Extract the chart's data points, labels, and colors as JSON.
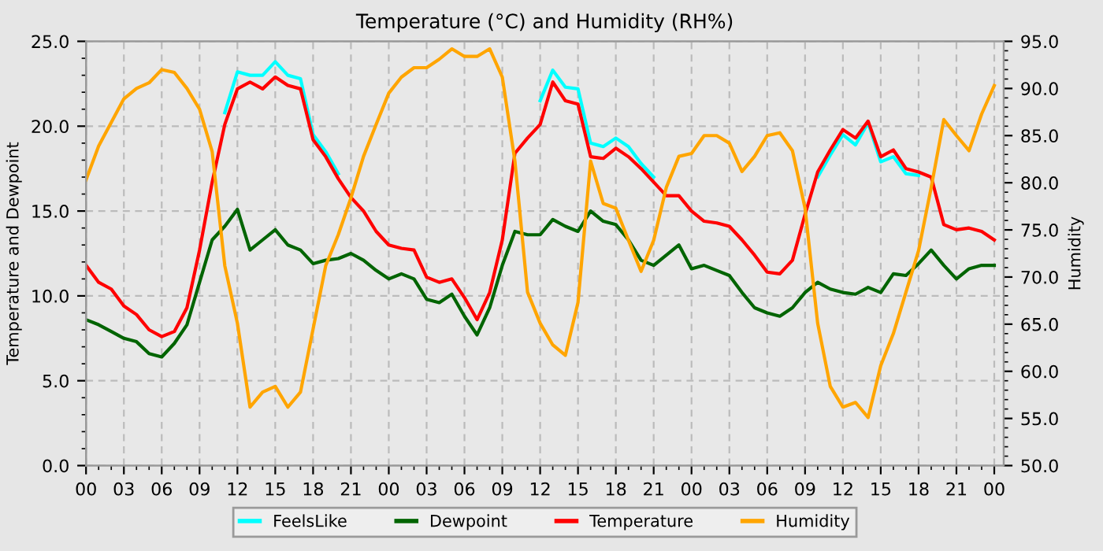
{
  "chart_data": {
    "type": "line",
    "title": "Temperature (°C) and Humidity (RH%)",
    "ylabel": "Temperature and Dewpoint",
    "y2label": "Humidity",
    "x": [
      0,
      1,
      2,
      3,
      4,
      5,
      6,
      7,
      8,
      9,
      10,
      11,
      12,
      13,
      14,
      15,
      16,
      17,
      18,
      19,
      20,
      21,
      22,
      23,
      24,
      25,
      26,
      27,
      28,
      29,
      30,
      31,
      32,
      33,
      34,
      35,
      36,
      37,
      38,
      39,
      40,
      41,
      42,
      43,
      44,
      45,
      46,
      47,
      48,
      49,
      50,
      51,
      52,
      53,
      54,
      55,
      56,
      57,
      58,
      59,
      60,
      61,
      62,
      63,
      64,
      65,
      66,
      67,
      68,
      69,
      70,
      71,
      72
    ],
    "series": [
      {
        "name": "FeelsLike",
        "color": "#00ffff",
        "values": [
          null,
          null,
          null,
          null,
          null,
          null,
          null,
          null,
          null,
          null,
          null,
          20.8,
          23.2,
          23.0,
          23.0,
          23.8,
          23.0,
          22.8,
          19.5,
          18.5,
          17.2,
          null,
          null,
          null,
          null,
          null,
          null,
          null,
          null,
          null,
          null,
          null,
          null,
          null,
          null,
          null,
          21.5,
          23.3,
          22.3,
          22.2,
          19.0,
          18.8,
          19.3,
          18.8,
          17.8,
          17.0,
          null,
          null,
          null,
          null,
          null,
          null,
          null,
          null,
          null,
          null,
          null,
          null,
          17.0,
          18.3,
          19.5,
          18.9,
          20.2,
          17.9,
          18.2,
          17.2,
          17.1,
          null,
          null,
          null,
          null,
          null,
          null
        ]
      },
      {
        "name": "Dewpoint",
        "color": "#006400",
        "values": [
          8.6,
          8.3,
          7.9,
          7.5,
          7.3,
          6.6,
          6.4,
          7.2,
          8.3,
          10.8,
          13.3,
          14.1,
          15.1,
          12.7,
          13.3,
          13.9,
          13.0,
          12.7,
          11.9,
          12.1,
          12.2,
          12.5,
          12.1,
          11.5,
          11.0,
          11.3,
          11.0,
          9.8,
          9.6,
          10.1,
          8.8,
          7.7,
          9.3,
          11.8,
          13.8,
          13.6,
          13.6,
          14.5,
          14.1,
          13.8,
          15.0,
          14.4,
          14.2,
          13.3,
          12.1,
          11.8,
          12.4,
          13.0,
          11.6,
          11.8,
          11.5,
          11.2,
          10.2,
          9.3,
          9.0,
          8.8,
          9.3,
          10.2,
          10.8,
          10.4,
          10.2,
          10.1,
          10.5,
          10.2,
          11.3,
          11.2,
          11.9,
          12.7,
          11.8,
          11.0,
          11.6,
          11.8,
          11.8
        ]
      },
      {
        "name": "Temperature",
        "color": "#ff0000",
        "values": [
          11.8,
          10.8,
          10.4,
          9.4,
          8.9,
          8.0,
          7.6,
          7.9,
          9.3,
          12.7,
          16.7,
          20.1,
          22.2,
          22.6,
          22.2,
          22.9,
          22.4,
          22.2,
          19.2,
          18.2,
          16.9,
          15.8,
          15.0,
          13.8,
          13.0,
          12.8,
          12.7,
          11.1,
          10.8,
          11.0,
          9.9,
          8.6,
          10.2,
          13.3,
          18.4,
          19.3,
          20.1,
          22.6,
          21.5,
          21.3,
          18.2,
          18.1,
          18.7,
          18.2,
          17.5,
          16.7,
          15.9,
          15.9,
          15.0,
          14.4,
          14.3,
          14.1,
          13.3,
          12.4,
          11.4,
          11.3,
          12.1,
          14.8,
          17.3,
          18.6,
          19.8,
          19.3,
          20.3,
          18.2,
          18.6,
          17.5,
          17.3,
          17.0,
          14.2,
          13.9,
          14.0,
          13.8,
          13.3
        ]
      },
      {
        "name": "Humidity",
        "color": "#ffa500",
        "axis": "y2",
        "values": [
          80.3,
          83.9,
          86.4,
          88.9,
          90.0,
          90.6,
          92.0,
          91.7,
          90.0,
          87.8,
          83.3,
          71.2,
          65.1,
          56.2,
          57.8,
          58.4,
          56.2,
          57.8,
          64.5,
          71.2,
          74.5,
          78.4,
          82.8,
          86.2,
          89.5,
          91.2,
          92.2,
          92.2,
          93.1,
          94.2,
          93.4,
          93.4,
          94.2,
          91.2,
          82.3,
          68.4,
          65.1,
          62.8,
          61.7,
          67.3,
          82.3,
          77.8,
          77.3,
          73.9,
          70.6,
          73.9,
          79.5,
          82.8,
          83.1,
          85.0,
          85.0,
          84.2,
          81.2,
          82.8,
          85.0,
          85.3,
          83.4,
          77.3,
          65.1,
          58.4,
          56.2,
          56.7,
          55.1,
          60.6,
          64.0,
          68.4,
          72.8,
          79.5,
          86.7,
          85.0,
          83.4,
          87.3,
          90.3
        ]
      }
    ],
    "xlim": [
      0,
      72.75
    ],
    "xticks": [
      {
        "value": 0,
        "label": "00"
      },
      {
        "value": 3,
        "label": "03"
      },
      {
        "value": 6,
        "label": "06"
      },
      {
        "value": 9,
        "label": "09"
      },
      {
        "value": 12,
        "label": "12"
      },
      {
        "value": 15,
        "label": "15"
      },
      {
        "value": 18,
        "label": "18"
      },
      {
        "value": 21,
        "label": "21"
      },
      {
        "value": 24,
        "label": "00"
      },
      {
        "value": 27,
        "label": "03"
      },
      {
        "value": 30,
        "label": "06"
      },
      {
        "value": 33,
        "label": "09"
      },
      {
        "value": 36,
        "label": "12"
      },
      {
        "value": 39,
        "label": "15"
      },
      {
        "value": 42,
        "label": "18"
      },
      {
        "value": 45,
        "label": "21"
      },
      {
        "value": 48,
        "label": "00"
      },
      {
        "value": 51,
        "label": "03"
      },
      {
        "value": 54,
        "label": "06"
      },
      {
        "value": 57,
        "label": "09"
      },
      {
        "value": 60,
        "label": "12"
      },
      {
        "value": 63,
        "label": "15"
      },
      {
        "value": 66,
        "label": "18"
      },
      {
        "value": 69,
        "label": "21"
      },
      {
        "value": 72,
        "label": "00"
      }
    ],
    "ylim": [
      0,
      25
    ],
    "yticks": [
      {
        "value": 0,
        "label": "0.0"
      },
      {
        "value": 5,
        "label": "5.0"
      },
      {
        "value": 10,
        "label": "10.0"
      },
      {
        "value": 15,
        "label": "15.0"
      },
      {
        "value": 20,
        "label": "20.0"
      },
      {
        "value": 25,
        "label": "25.0"
      }
    ],
    "y2lim": [
      50,
      95
    ],
    "y2ticks": [
      {
        "value": 50,
        "label": "50.0"
      },
      {
        "value": 55,
        "label": "55.0"
      },
      {
        "value": 60,
        "label": "60.0"
      },
      {
        "value": 65,
        "label": "65.0"
      },
      {
        "value": 70,
        "label": "70.0"
      },
      {
        "value": 75,
        "label": "75.0"
      },
      {
        "value": 80,
        "label": "80.0"
      },
      {
        "value": 85,
        "label": "85.0"
      },
      {
        "value": 90,
        "label": "90.0"
      },
      {
        "value": 95,
        "label": "95.0"
      }
    ],
    "grid": true,
    "legend": "bottom",
    "marker": "none",
    "line_style": "solid"
  }
}
